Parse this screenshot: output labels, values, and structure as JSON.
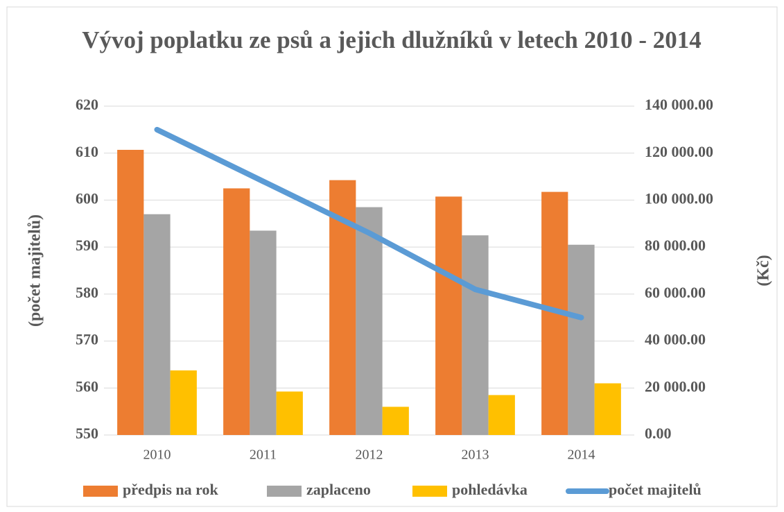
{
  "chart_data": {
    "type": "bar",
    "title": "Vývoj poplatku ze psů a jejich dlužníků v letech 2010 - 2014",
    "y_label": "(počet majitelů)",
    "y2_label": "(Kč)",
    "categories": [
      "2010",
      "2011",
      "2012",
      "2013",
      "2014"
    ],
    "series": [
      {
        "name": "předpis na rok",
        "color": "#ed7d31",
        "type": "bar",
        "axis": "y2",
        "values": [
          121400,
          105000,
          108500,
          101500,
          103500
        ]
      },
      {
        "name": "zaplaceno",
        "color": "#a5a5a5",
        "type": "bar",
        "axis": "y2",
        "values": [
          94000,
          87000,
          97000,
          85000,
          81000
        ]
      },
      {
        "name": "pohledávka",
        "color": "#ffc000",
        "type": "bar",
        "axis": "y2",
        "values": [
          27500,
          18500,
          12000,
          17000,
          22000
        ]
      },
      {
        "name": "počet majitelů",
        "color": "#5b9bd5",
        "type": "line",
        "axis": "y",
        "values": [
          615,
          604,
          593,
          581,
          575
        ]
      }
    ],
    "ylim": [
      550,
      620
    ],
    "yticks": [
      550,
      560,
      570,
      580,
      590,
      600,
      610,
      620
    ],
    "y2lim": [
      0,
      140000
    ],
    "y2ticks": [
      {
        "value": 0,
        "label": "0.00"
      },
      {
        "value": 20000,
        "label": "20 000.00"
      },
      {
        "value": 40000,
        "label": "40 000.00"
      },
      {
        "value": 60000,
        "label": "60 000.00"
      },
      {
        "value": 80000,
        "label": "80 000.00"
      },
      {
        "value": 100000,
        "label": "100 000.00"
      },
      {
        "value": 120000,
        "label": "120 000.00"
      },
      {
        "value": 140000,
        "label": "140 000.00"
      }
    ],
    "grid": true,
    "legend": "bottom"
  }
}
